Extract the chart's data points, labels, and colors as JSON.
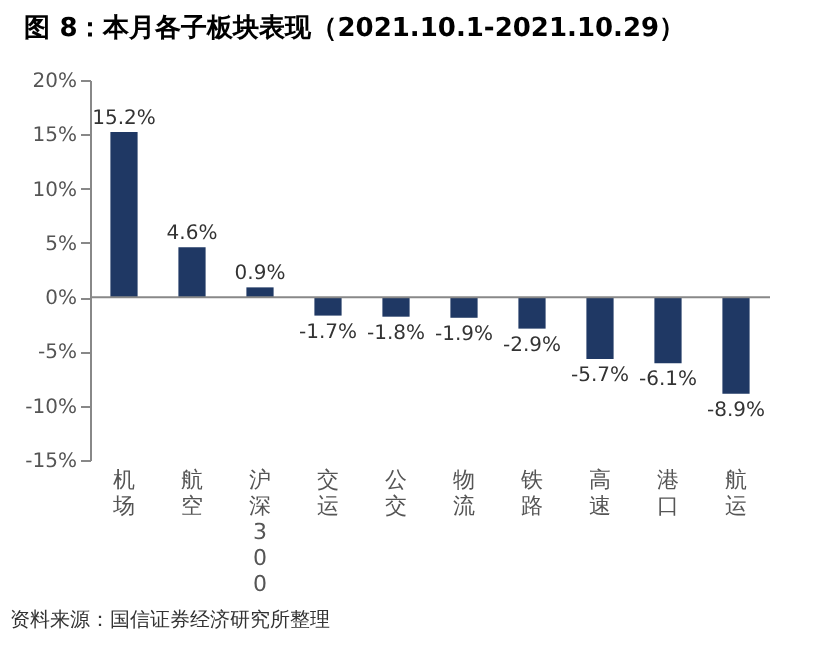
{
  "chart_data": {
    "type": "bar",
    "title": "图 8：本月各子板块表现（2021.10.1-2021.10.29）",
    "categories": [
      "机场",
      "航空",
      "沪深300",
      "交运",
      "公交",
      "物流",
      "铁路",
      "高速",
      "港口",
      "航运"
    ],
    "values": [
      15.2,
      4.6,
      0.9,
      -1.7,
      -1.8,
      -1.9,
      -2.9,
      -5.7,
      -6.1,
      -8.9
    ],
    "value_labels": [
      "15.2%",
      "4.6%",
      "0.9%",
      "-1.7%",
      "-1.8%",
      "-1.9%",
      "-2.9%",
      "-5.7%",
      "-6.1%",
      "-8.9%"
    ],
    "color": "#1f3864",
    "ylim": [
      -15,
      20
    ],
    "yticks": [
      {
        "value": -15,
        "label": "-15%"
      },
      {
        "value": -10,
        "label": "-10%"
      },
      {
        "value": -5,
        "label": "-5%"
      },
      {
        "value": 0,
        "label": "0%"
      },
      {
        "value": 5,
        "label": "5%"
      },
      {
        "value": 10,
        "label": "10%"
      },
      {
        "value": 15,
        "label": "15%"
      },
      {
        "value": 20,
        "label": "20%"
      }
    ],
    "grid": false,
    "ref_lines": [
      {
        "axis": "y",
        "value": 0,
        "color": "#888888"
      }
    ],
    "annotations": [
      "资料来源：国信证券经济研究所整理"
    ]
  }
}
